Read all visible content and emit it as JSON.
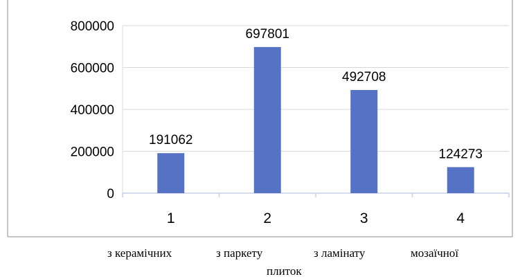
{
  "chart_data": {
    "type": "bar",
    "categories": [
      "1",
      "2",
      "3",
      "4"
    ],
    "values": [
      191062,
      697801,
      492708,
      124273
    ],
    "data_labels": [
      "191062",
      "697801",
      "492708",
      "124273"
    ],
    "yticks": [
      "0",
      "200000",
      "400000",
      "600000",
      "800000"
    ],
    "ylim": [
      0,
      800000
    ],
    "grid": true,
    "bar_color": "#5572c4",
    "grid_color": "#d9d9d9",
    "axis_color": "#c8d0e8"
  },
  "captions": [
    "з керамічних",
    "з паркету",
    "з ламінату",
    "мозаїчної",
    "плиток"
  ]
}
